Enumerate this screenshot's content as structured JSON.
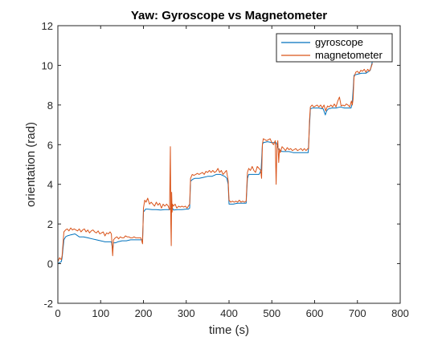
{
  "chart_data": {
    "type": "line",
    "title": "Yaw: Gyroscope vs Magnetometer",
    "xlabel": "time (s)",
    "ylabel": "orientation (rad)",
    "xlim": [
      0,
      800
    ],
    "ylim": [
      -2,
      12
    ],
    "xticks": [
      0,
      100,
      200,
      300,
      400,
      500,
      600,
      700,
      800
    ],
    "yticks": [
      -2,
      0,
      2,
      4,
      6,
      8,
      10,
      12
    ],
    "grid": false,
    "legend_position": "top-right",
    "series": [
      {
        "name": "gyroscope",
        "color": "#0072BD",
        "x": [
          0,
          4,
          8,
          10,
          14,
          18,
          22,
          30,
          40,
          50,
          60,
          70,
          80,
          90,
          100,
          110,
          120,
          125,
          128,
          130,
          135,
          140,
          150,
          160,
          170,
          180,
          190,
          195,
          198,
          200,
          205,
          210,
          220,
          230,
          240,
          250,
          260,
          265,
          268,
          270,
          280,
          290,
          300,
          305,
          308,
          310,
          315,
          320,
          330,
          340,
          350,
          360,
          370,
          380,
          390,
          395,
          398,
          400,
          410,
          420,
          430,
          440,
          443,
          446,
          450,
          460,
          470,
          475,
          478,
          480,
          490,
          500,
          510,
          515,
          520,
          525,
          530,
          540,
          550,
          560,
          570,
          580,
          585,
          590,
          595,
          600,
          610,
          620,
          625,
          628,
          632,
          640,
          650,
          660,
          670,
          680,
          685,
          688,
          692,
          700,
          710,
          720,
          730,
          735
        ],
        "values": [
          0,
          0.05,
          0.1,
          0.3,
          1.2,
          1.35,
          1.4,
          1.45,
          1.5,
          1.35,
          1.35,
          1.3,
          1.25,
          1.2,
          1.15,
          1.1,
          1.1,
          1.1,
          0.7,
          1.05,
          1.05,
          1.1,
          1.15,
          1.15,
          1.2,
          1.2,
          1.2,
          1.2,
          1.2,
          2.6,
          2.75,
          2.75,
          2.72,
          2.72,
          2.7,
          2.72,
          2.72,
          2.8,
          2.8,
          2.7,
          2.72,
          2.72,
          2.75,
          2.75,
          2.8,
          4.15,
          4.25,
          4.3,
          4.3,
          4.35,
          4.4,
          4.4,
          4.5,
          4.5,
          4.4,
          4.3,
          4.0,
          3.0,
          3.0,
          3.05,
          3.05,
          3.05,
          4.3,
          4.5,
          4.5,
          4.5,
          4.5,
          4.7,
          6.0,
          6.1,
          6.15,
          6.1,
          6.1,
          5.8,
          5.7,
          5.65,
          5.65,
          5.65,
          5.6,
          5.6,
          5.6,
          5.6,
          5.6,
          7.8,
          7.85,
          7.85,
          7.85,
          7.8,
          7.5,
          7.7,
          7.8,
          7.85,
          7.85,
          7.9,
          7.85,
          7.85,
          7.85,
          8.1,
          9.5,
          9.55,
          9.6,
          9.6,
          9.75,
          10.2
        ]
      },
      {
        "name": "magnetometer",
        "color": "#D95319",
        "x": [
          0,
          4,
          8,
          10,
          14,
          18,
          22,
          26,
          30,
          34,
          38,
          42,
          46,
          50,
          54,
          58,
          62,
          66,
          70,
          74,
          78,
          82,
          86,
          90,
          94,
          98,
          102,
          106,
          110,
          114,
          118,
          122,
          125,
          128,
          130,
          134,
          138,
          142,
          146,
          150,
          154,
          158,
          162,
          166,
          170,
          174,
          178,
          182,
          186,
          190,
          194,
          198,
          200,
          203,
          206,
          210,
          214,
          218,
          222,
          226,
          230,
          234,
          238,
          242,
          246,
          250,
          254,
          258,
          261,
          263,
          264,
          265,
          266,
          267,
          268,
          270,
          274,
          278,
          282,
          286,
          290,
          294,
          298,
          302,
          305,
          308,
          310,
          314,
          318,
          322,
          326,
          330,
          334,
          338,
          342,
          346,
          350,
          354,
          358,
          362,
          366,
          370,
          374,
          378,
          382,
          386,
          390,
          394,
          398,
          400,
          404,
          408,
          412,
          416,
          420,
          424,
          428,
          432,
          436,
          440,
          443,
          446,
          450,
          454,
          458,
          462,
          466,
          470,
          474,
          476,
          478,
          480,
          484,
          488,
          492,
          496,
          500,
          504,
          508,
          510,
          512,
          514,
          516,
          518,
          520,
          524,
          528,
          532,
          536,
          540,
          544,
          548,
          552,
          556,
          560,
          564,
          568,
          572,
          576,
          580,
          584,
          586,
          588,
          590,
          594,
          598,
          602,
          606,
          610,
          614,
          618,
          622,
          626,
          630,
          634,
          638,
          642,
          646,
          650,
          654,
          658,
          662,
          666,
          670,
          674,
          678,
          682,
          686,
          688,
          690,
          692,
          696,
          700,
          704,
          708,
          712,
          716,
          720,
          724,
          728,
          732,
          735
        ],
        "values": [
          0.1,
          0.3,
          0.2,
          0.4,
          1.6,
          1.7,
          1.75,
          1.65,
          1.8,
          1.7,
          1.75,
          1.7,
          1.65,
          1.75,
          1.6,
          1.7,
          1.75,
          1.6,
          1.7,
          1.55,
          1.65,
          1.7,
          1.6,
          1.55,
          1.65,
          1.5,
          1.55,
          1.6,
          1.4,
          1.55,
          1.5,
          1.6,
          1.5,
          0.4,
          1.2,
          1.3,
          1.35,
          1.25,
          1.35,
          1.3,
          1.3,
          1.4,
          1.35,
          1.35,
          1.3,
          1.3,
          1.35,
          1.3,
          1.3,
          1.3,
          1.3,
          1.0,
          2.8,
          3.2,
          3.1,
          3.3,
          3.0,
          3.1,
          3.0,
          2.9,
          3.1,
          2.95,
          3.05,
          2.8,
          3.0,
          2.9,
          3.0,
          2.9,
          2.7,
          5.9,
          2.0,
          0.9,
          3.6,
          2.6,
          3.0,
          2.9,
          3.0,
          2.8,
          2.9,
          2.85,
          2.9,
          2.85,
          2.9,
          2.8,
          2.9,
          3.0,
          4.3,
          4.5,
          4.45,
          4.5,
          4.55,
          4.5,
          4.55,
          4.6,
          4.5,
          4.65,
          4.6,
          4.7,
          4.6,
          4.7,
          4.6,
          4.65,
          4.8,
          4.6,
          4.7,
          4.5,
          4.6,
          4.7,
          4.2,
          3.2,
          3.1,
          3.15,
          3.1,
          3.15,
          3.1,
          3.2,
          3.1,
          3.15,
          3.1,
          3.15,
          4.6,
          4.8,
          4.7,
          4.9,
          4.7,
          4.6,
          4.9,
          4.8,
          4.7,
          4.3,
          6.0,
          6.3,
          6.25,
          6.2,
          6.25,
          6.3,
          6.1,
          6.0,
          6.2,
          4.0,
          5.9,
          6.2,
          5.1,
          5.8,
          5.6,
          5.9,
          5.8,
          5.7,
          5.85,
          5.75,
          5.8,
          5.7,
          5.75,
          5.8,
          5.7,
          5.75,
          5.8,
          5.7,
          5.8,
          5.7,
          5.8,
          5.8,
          7.2,
          7.9,
          8.0,
          7.9,
          7.95,
          8.0,
          7.9,
          8.0,
          7.85,
          8.0,
          7.7,
          7.95,
          7.9,
          8.0,
          7.9,
          8.05,
          7.9,
          8.2,
          8.4,
          7.95,
          8.0,
          7.95,
          8.05,
          8.0,
          7.9,
          8.2,
          8.0,
          8.3,
          9.4,
          9.65,
          9.7,
          9.6,
          9.75,
          9.7,
          9.8,
          9.65,
          9.8,
          9.7,
          9.9,
          10.1
        ]
      }
    ]
  }
}
